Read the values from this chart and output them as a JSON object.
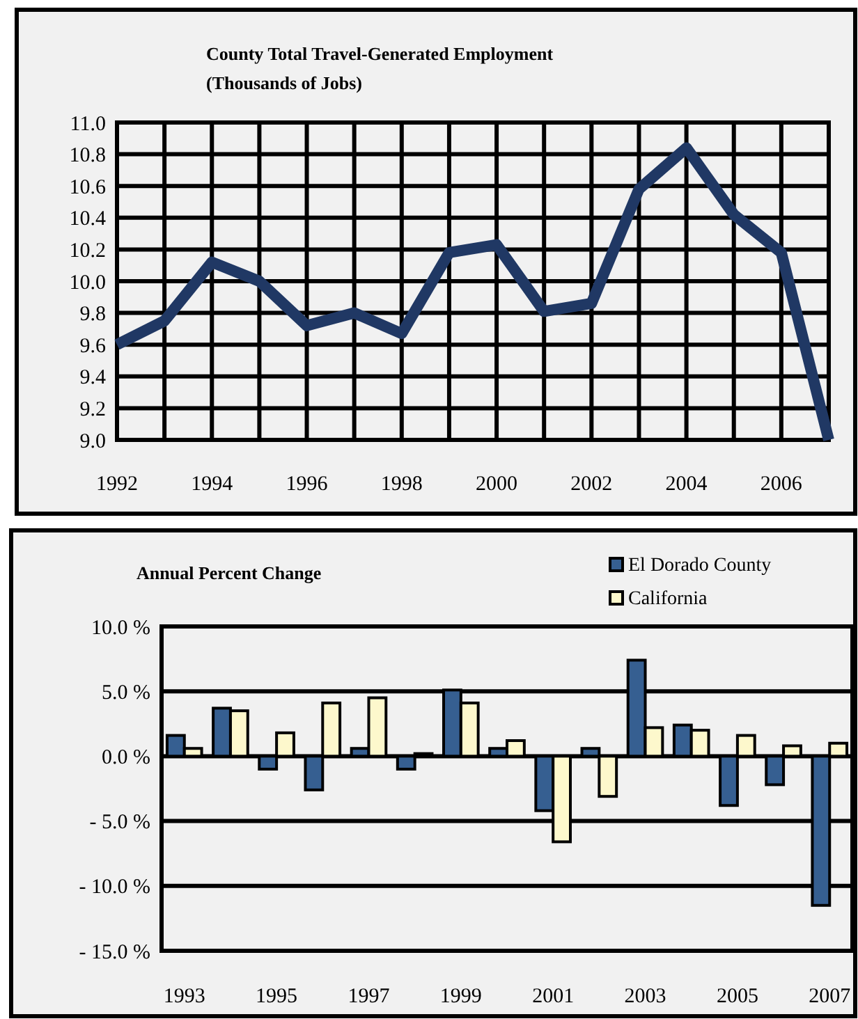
{
  "chart_data": [
    {
      "type": "line",
      "title": "County Total  Travel-Generated Employment",
      "subtitle": "(Thousands of Jobs)",
      "x": [
        1992,
        1993,
        1994,
        1995,
        1996,
        1997,
        1998,
        1999,
        2000,
        2001,
        2002,
        2003,
        2004,
        2005,
        2006,
        2007
      ],
      "series": [
        {
          "color": "#203864",
          "values": [
            9.6,
            9.75,
            10.12,
            10.0,
            9.72,
            9.8,
            9.67,
            10.18,
            10.23,
            9.81,
            9.86,
            10.58,
            10.84,
            10.42,
            10.18,
            9.0
          ]
        }
      ],
      "xlim": [
        1992,
        2007
      ],
      "xticks": [
        1992,
        {
          "value": 1993,
          "label": null
        },
        1994,
        {
          "value": 1995,
          "label": null
        },
        1996,
        {
          "value": 1997,
          "label": null
        },
        1998,
        {
          "value": 1999,
          "label": null
        },
        2000,
        {
          "value": 2001,
          "label": null
        },
        2002,
        {
          "value": 2003,
          "label": null
        },
        2004,
        {
          "value": 2005,
          "label": null
        },
        2006,
        {
          "value": 2007,
          "label": null
        }
      ],
      "ylim": [
        9.0,
        11.0
      ],
      "yticks": [
        {
          "value": 9.0,
          "label": "9.0"
        },
        9.2,
        9.4,
        9.6,
        9.8,
        {
          "value": 10.0,
          "label": "10.0"
        },
        10.2,
        10.4,
        10.6,
        10.8,
        {
          "value": 11.0,
          "label": "11.0"
        }
      ],
      "grid": true,
      "legend": false,
      "marker": "none",
      "line_style": "solid"
    },
    {
      "type": "bar",
      "title": "Annual Percent Change",
      "categories": [
        "1993",
        null,
        "1995",
        null,
        "1997",
        null,
        "1999",
        null,
        "2001",
        null,
        "2003",
        null,
        "2005",
        null,
        "2007"
      ],
      "series": [
        {
          "name": "El Dorado County",
          "color": "#365f91",
          "values": [
            1.6,
            3.7,
            -1.0,
            -2.6,
            0.6,
            -1.0,
            5.1,
            0.6,
            -4.2,
            0.6,
            7.4,
            2.4,
            -3.8,
            -2.2,
            -11.5
          ]
        },
        {
          "name": "California",
          "color": "#fdf8cc",
          "values": [
            0.6,
            3.5,
            1.8,
            4.1,
            4.5,
            0.2,
            4.1,
            1.2,
            -6.6,
            -3.1,
            2.2,
            2.0,
            1.6,
            0.8,
            1.0
          ]
        }
      ],
      "ylim": [
        -15,
        10
      ],
      "yticks": [
        {
          "value": -15,
          "label": "- 15.0 %"
        },
        {
          "value": -10,
          "label": "- 10.0 %"
        },
        {
          "value": -5,
          "label": "- 5.0 %"
        },
        {
          "value": 0,
          "label": "0.0 %"
        },
        {
          "value": 5,
          "label": "5.0 %"
        },
        {
          "value": 10,
          "label": "10.0 %"
        }
      ],
      "grid": "y",
      "legend": "top right"
    }
  ]
}
